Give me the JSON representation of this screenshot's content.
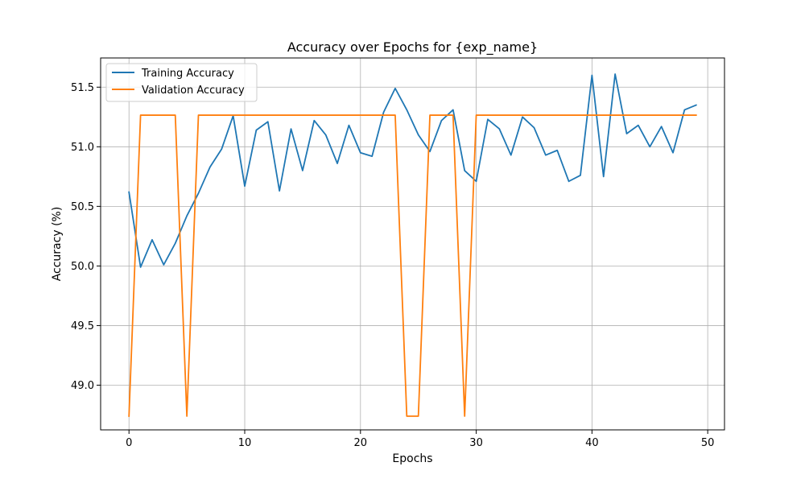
{
  "chart_data": {
    "type": "line",
    "title": "Accuracy over Epochs for {exp_name}",
    "xlabel": "Epochs",
    "ylabel": "Accuracy (%)",
    "xlim": [
      -2.45,
      51.45
    ],
    "ylim": [
      48.625,
      51.745
    ],
    "xticks": [
      0,
      10,
      20,
      30,
      40,
      50
    ],
    "xtick_labels": [
      "0",
      "10",
      "20",
      "30",
      "40",
      "50"
    ],
    "yticks": [
      49.0,
      49.5,
      50.0,
      50.5,
      51.0,
      51.5
    ],
    "ytick_labels": [
      "49.0",
      "49.5",
      "50.0",
      "50.5",
      "51.0",
      "51.5"
    ],
    "grid": true,
    "legend_position": "top-left",
    "x": [
      0,
      1,
      2,
      3,
      4,
      5,
      6,
      7,
      8,
      9,
      10,
      11,
      12,
      13,
      14,
      15,
      16,
      17,
      18,
      19,
      20,
      21,
      22,
      23,
      24,
      25,
      26,
      27,
      28,
      29,
      30,
      31,
      32,
      33,
      34,
      35,
      36,
      37,
      38,
      39,
      40,
      41,
      42,
      43,
      44,
      45,
      46,
      47,
      48,
      49
    ],
    "series": [
      {
        "name": "Training Accuracy",
        "color": "#1f77b4",
        "values": [
          50.62,
          49.99,
          50.22,
          50.01,
          50.19,
          50.42,
          50.61,
          50.83,
          50.98,
          51.26,
          50.67,
          51.14,
          51.21,
          50.63,
          51.15,
          50.8,
          51.22,
          51.1,
          50.86,
          51.18,
          50.95,
          50.92,
          51.29,
          51.49,
          51.31,
          51.1,
          50.96,
          51.22,
          51.31,
          50.8,
          50.71,
          51.23,
          51.15,
          50.93,
          51.25,
          51.16,
          50.93,
          50.97,
          50.71,
          50.76,
          51.6,
          50.75,
          51.61,
          51.11,
          51.18,
          51.0,
          51.17,
          50.95,
          51.31,
          51.35
        ]
      },
      {
        "name": "Validation Accuracy",
        "color": "#ff7f0e",
        "values": [
          48.74,
          51.265,
          51.265,
          51.265,
          51.265,
          48.74,
          51.265,
          51.265,
          51.265,
          51.265,
          51.265,
          51.265,
          51.265,
          51.265,
          51.265,
          51.265,
          51.265,
          51.265,
          51.265,
          51.265,
          51.265,
          51.265,
          51.265,
          51.265,
          48.74,
          48.74,
          51.265,
          51.265,
          51.265,
          48.74,
          51.265,
          51.265,
          51.265,
          51.265,
          51.265,
          51.265,
          51.265,
          51.265,
          51.265,
          51.265,
          51.265,
          51.265,
          51.265,
          51.265,
          51.265,
          51.265,
          51.265,
          51.265,
          51.265,
          51.265
        ]
      }
    ]
  }
}
